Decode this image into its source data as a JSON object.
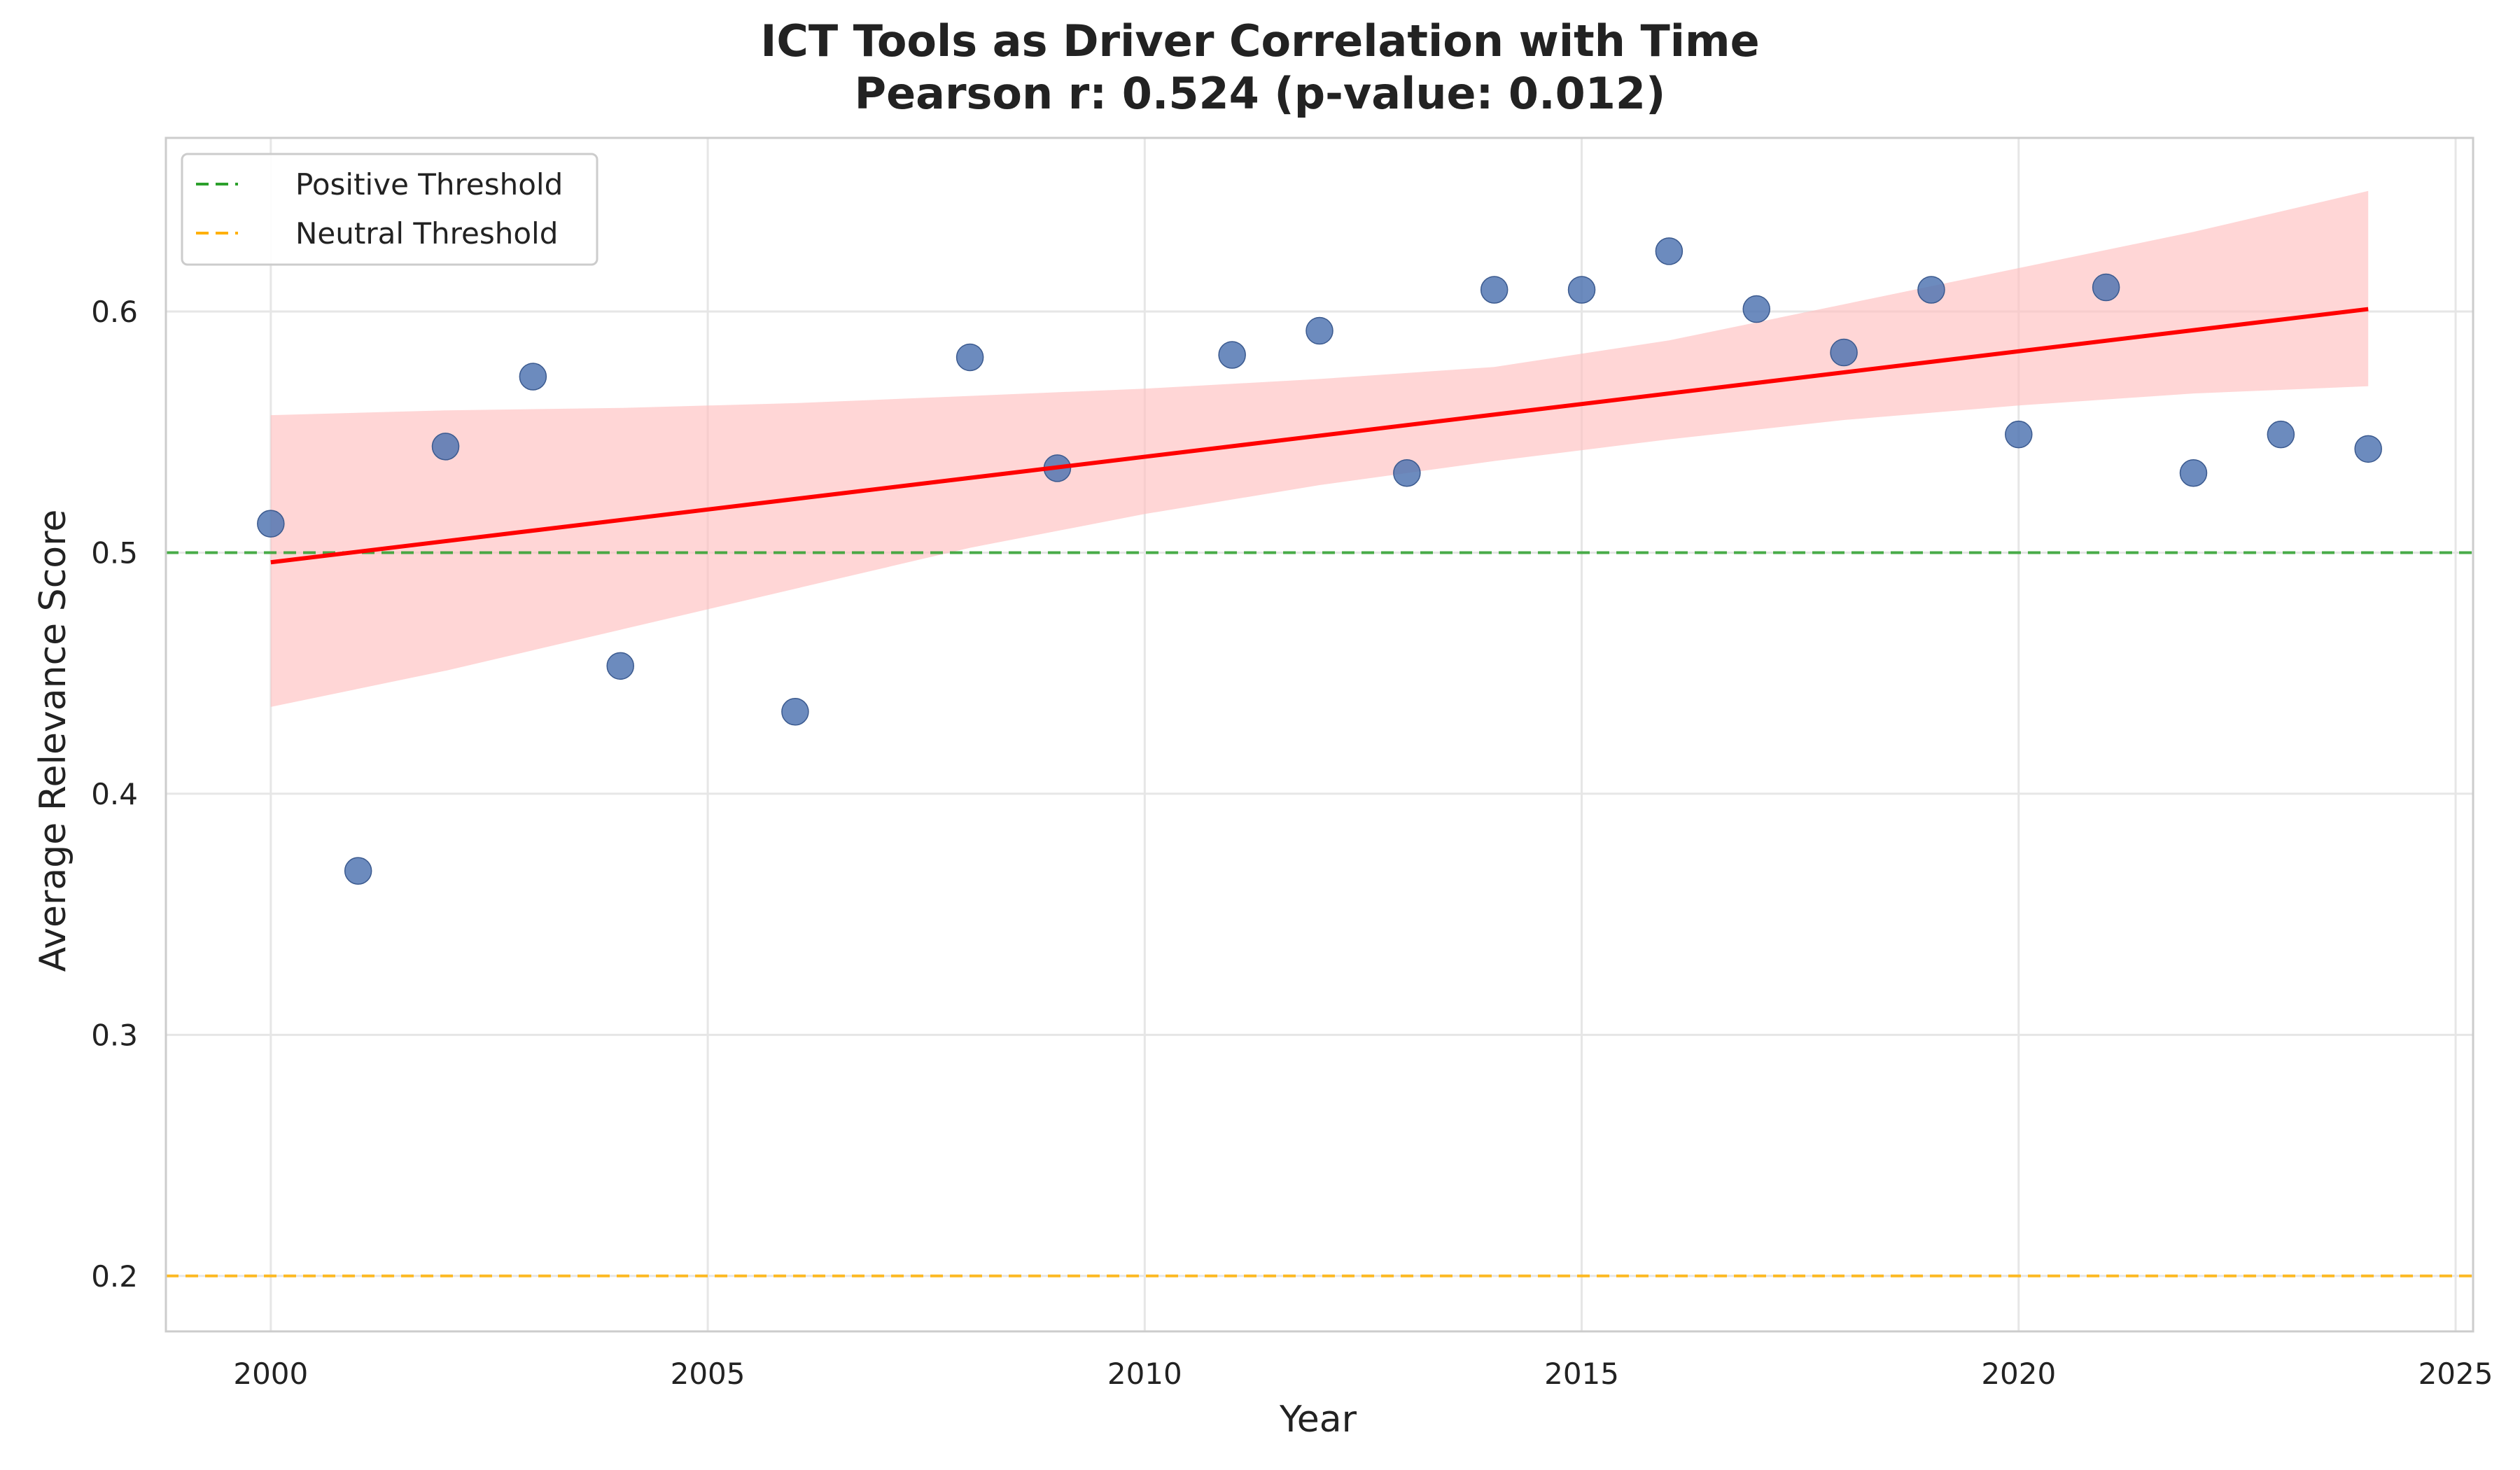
{
  "chart_data": {
    "type": "scatter",
    "title": "ICT Tools as Driver Correlation with Time",
    "subtitle": "Pearson r: 0.524 (p-value: 0.012)",
    "xlabel": "Year",
    "ylabel": "Average Relevance Score",
    "xlim": [
      1998.8,
      2025.2
    ],
    "ylim": [
      0.177,
      0.672
    ],
    "x_ticks": [
      2000,
      2005,
      2010,
      2015,
      2020,
      2025
    ],
    "y_ticks": [
      0.2,
      0.3,
      0.4,
      0.5,
      0.6
    ],
    "grid": true,
    "legend_position": "top-left",
    "series": [
      {
        "color": "#4C72B0",
        "x": [
          2000,
          2001,
          2002,
          2003,
          2004,
          2006,
          2008,
          2009,
          2011,
          2012,
          2013,
          2014,
          2015,
          2016,
          2017,
          2018,
          2019,
          2020,
          2021,
          2022,
          2023,
          2024
        ],
        "y": [
          0.512,
          0.368,
          0.544,
          0.573,
          0.453,
          0.434,
          0.581,
          0.535,
          0.582,
          0.592,
          0.533,
          0.609,
          0.609,
          0.625,
          0.601,
          0.583,
          0.609,
          0.549,
          0.61,
          0.533,
          0.549,
          0.543
        ]
      }
    ],
    "regression": {
      "color": "#ff0000",
      "x": [
        2000,
        2024
      ],
      "y": [
        0.496,
        0.601
      ],
      "ci_color": "#ffc0c0",
      "ci_x": [
        2000,
        2002,
        2004,
        2006,
        2008,
        2010,
        2012,
        2014,
        2016,
        2018,
        2020,
        2022,
        2024
      ],
      "ci_lower": [
        0.436,
        0.451,
        0.468,
        0.485,
        0.502,
        0.516,
        0.528,
        0.538,
        0.547,
        0.555,
        0.561,
        0.566,
        0.569
      ],
      "ci_upper": [
        0.557,
        0.559,
        0.56,
        0.562,
        0.565,
        0.568,
        0.572,
        0.577,
        0.588,
        0.603,
        0.618,
        0.633,
        0.65
      ]
    },
    "thresholds": [
      {
        "name": "Positive Threshold",
        "value": 0.5,
        "color": "#2ca02c"
      },
      {
        "name": "Neutral Threshold",
        "value": 0.2,
        "color": "#ffb000"
      }
    ]
  }
}
